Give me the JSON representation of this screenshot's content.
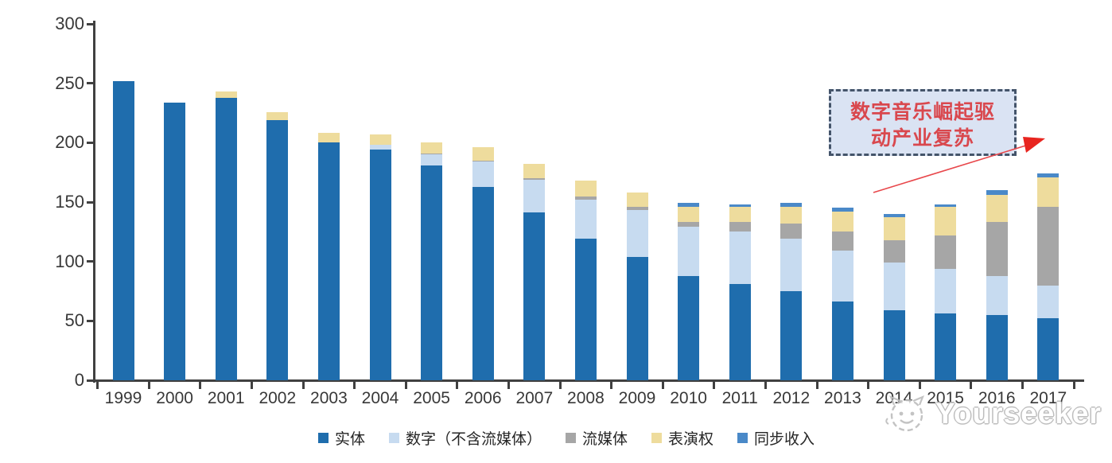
{
  "chart_data": {
    "type": "bar",
    "stacked": true,
    "title": "",
    "xlabel": "",
    "ylabel": "",
    "categories": [
      "1999",
      "2000",
      "2001",
      "2002",
      "2003",
      "2004",
      "2005",
      "2006",
      "2007",
      "2008",
      "2009",
      "2010",
      "2011",
      "2012",
      "2013",
      "2014",
      "2015",
      "2016",
      "2017"
    ],
    "series": [
      {
        "name": "实体",
        "color": "#1f6dad",
        "values": [
          252,
          234,
          238,
          219,
          200,
          194,
          181,
          163,
          141,
          119,
          104,
          88,
          81,
          75,
          66,
          59,
          56,
          55,
          52
        ]
      },
      {
        "name": "数字（不含流媒体）",
        "color": "#c7dbf0",
        "values": [
          0,
          0,
          0,
          0,
          0,
          4,
          9,
          21,
          28,
          33,
          39,
          41,
          44,
          44,
          43,
          40,
          38,
          33,
          28
        ]
      },
      {
        "name": "流媒体",
        "color": "#a6a6a6",
        "values": [
          0,
          0,
          0,
          0,
          0,
          0,
          1,
          1,
          1,
          3,
          3,
          4,
          8,
          13,
          16,
          19,
          28,
          45,
          66
        ]
      },
      {
        "name": "表演权",
        "color": "#eedc9d",
        "values": [
          0,
          0,
          5,
          7,
          8,
          9,
          9,
          11,
          12,
          13,
          12,
          13,
          13,
          14,
          17,
          19,
          24,
          23,
          25
        ]
      },
      {
        "name": "同步收入",
        "color": "#4a89c8",
        "values": [
          0,
          0,
          0,
          0,
          0,
          0,
          0,
          0,
          0,
          0,
          0,
          3,
          2,
          3,
          3,
          3,
          2,
          4,
          3
        ]
      }
    ],
    "ylim": [
      0,
      300
    ],
    "yticks": [
      0,
      50,
      100,
      150,
      200,
      250,
      300
    ],
    "grid": false,
    "legend_position": "bottom"
  },
  "annotation": {
    "line1": "数字音乐崛起驱",
    "line2": "动产业复苏",
    "text_color": "#d9484e",
    "box_fill": "#dae3f3",
    "box_border_color": "#44546a",
    "arrow_color": "#e8474b"
  },
  "watermark": {
    "text": "Yourseeker"
  },
  "style": {
    "axis_color": "#404040",
    "tick_label_color": "#383838"
  }
}
